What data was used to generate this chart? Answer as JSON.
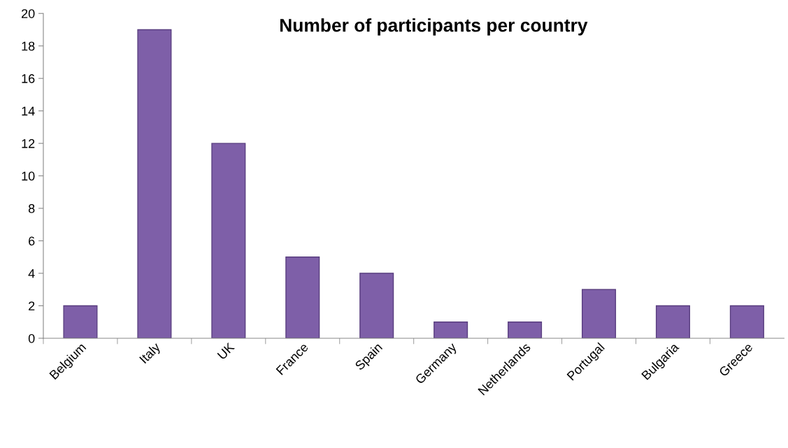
{
  "chart_data": {
    "type": "bar",
    "title": "Number of participants per country",
    "categories": [
      "Belgium",
      "Italy",
      "UK",
      "France",
      "Spain",
      "Germany",
      "Netherlands",
      "Portugal",
      "Bulgaria",
      "Greece"
    ],
    "values": [
      2,
      19,
      12,
      5,
      4,
      1,
      1,
      3,
      2,
      2
    ],
    "color": "#7e5fa8",
    "ylim": [
      0,
      20
    ],
    "yticks": [
      0,
      2,
      4,
      6,
      8,
      10,
      12,
      14,
      16,
      18,
      20
    ],
    "grid": false
  }
}
